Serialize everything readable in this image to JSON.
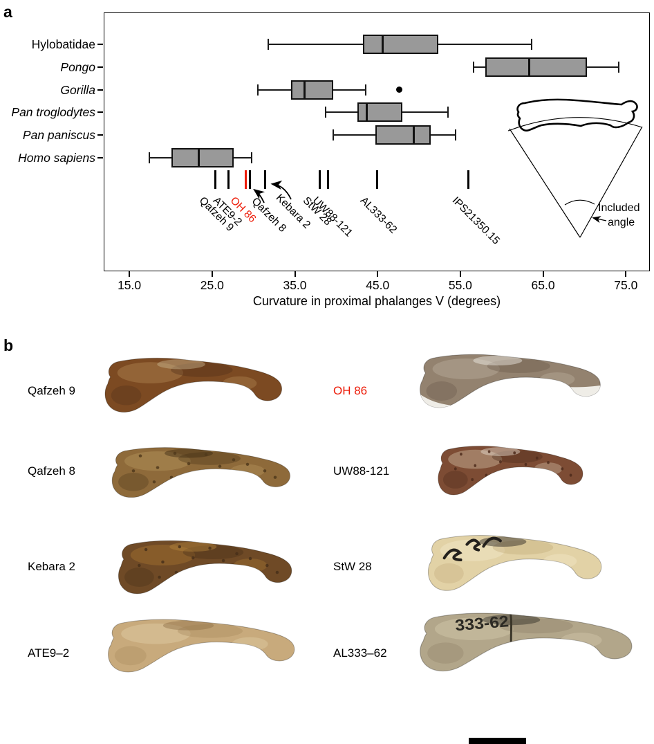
{
  "panel_a": {
    "label": "a",
    "inset": {
      "caption_line1": "Included",
      "caption_line2": "angle"
    }
  },
  "chart_data": {
    "type": "boxplot-horizontal",
    "title": "",
    "xlabel": "Curvature in proximal phalanges V (degrees)",
    "xlim": [
      11.9,
      77.9
    ],
    "x_ticks": [
      15,
      25,
      35,
      45,
      55,
      65,
      75
    ],
    "x_tick_labels": [
      "15.0",
      "25.0",
      "35.0",
      "45.0",
      "55.0",
      "65.0",
      "75.0"
    ],
    "grid": false,
    "box_fill": "#999999",
    "series": [
      {
        "name": "Hylobatidae",
        "italic": false,
        "min": 31.8,
        "q1": 43.2,
        "median": 45.6,
        "q3": 52.3,
        "max": 63.6,
        "outliers": []
      },
      {
        "name": "Pongo",
        "italic": true,
        "min": 56.6,
        "q1": 58.0,
        "median": 63.3,
        "q3": 70.3,
        "max": 74.1,
        "outliers": []
      },
      {
        "name": "Gorilla",
        "italic": true,
        "min": 30.5,
        "q1": 34.5,
        "median": 36.2,
        "q3": 39.6,
        "max": 43.6,
        "outliers": [
          47.6
        ]
      },
      {
        "name": "Pan troglodytes",
        "italic": true,
        "min": 38.7,
        "q1": 42.6,
        "median": 43.7,
        "q3": 48.0,
        "max": 53.5,
        "outliers": []
      },
      {
        "name": "Pan paniscus",
        "italic": true,
        "min": 39.6,
        "q1": 44.7,
        "median": 49.4,
        "q3": 51.4,
        "max": 54.4,
        "outliers": []
      },
      {
        "name": "Homo sapiens",
        "italic": true,
        "min": 17.4,
        "q1": 20.1,
        "median": 23.4,
        "q3": 27.6,
        "max": 29.8,
        "outliers": []
      }
    ],
    "fossil_markers": [
      {
        "label": "Qafzeh 9",
        "value": 25.4,
        "color": "#000000"
      },
      {
        "label": "ATE9-2",
        "value": 27.0,
        "color": "#000000"
      },
      {
        "label": "OH 86",
        "value": 29.1,
        "color": "#ed1c09"
      },
      {
        "label": "Qafzeh 8",
        "value": 29.6,
        "color": "#000000",
        "arrow": true
      },
      {
        "label": "Kebara 2",
        "value": 31.4,
        "color": "#000000",
        "arrow": true
      },
      {
        "label": "StW 28",
        "value": 38.0,
        "color": "#000000"
      },
      {
        "label": "UW88-121",
        "value": 39.0,
        "color": "#000000"
      },
      {
        "label": "AL333-62",
        "value": 44.9,
        "color": "#000000"
      },
      {
        "label": "IPS21350.15",
        "value": 56.0,
        "color": "#000000"
      }
    ]
  },
  "panel_b": {
    "label": "b",
    "scale_bar_present": true,
    "highlight_color": "#ed1c09",
    "specimens": [
      {
        "name": "Qafzeh 9",
        "name_color": "#000000",
        "bone_colors": {
          "base": "#7c4a22",
          "dark": "#53301a",
          "light": "#a57a48",
          "accent": "#c9b690"
        }
      },
      {
        "name": "OH 86",
        "name_color": "#ed1c09",
        "white_underside": true,
        "bone_colors": {
          "base": "#93826f",
          "dark": "#6b5a4a",
          "light": "#b3a593",
          "accent": "#f1efe9"
        }
      },
      {
        "name": "Qafzeh 8",
        "name_color": "#000000",
        "speckled": true,
        "bone_colors": {
          "base": "#8e6a3a",
          "dark": "#513a1c",
          "light": "#ad8c55",
          "accent": "#3c2b12"
        }
      },
      {
        "name": "UW88-121",
        "name_color": "#000000",
        "speckled": true,
        "bone_colors": {
          "base": "#7d4c34",
          "dark": "#4e2c1c",
          "light": "#c0a58d",
          "accent": "#e9e0d2"
        }
      },
      {
        "name": "Kebara 2",
        "name_color": "#000000",
        "speckled": true,
        "bone_colors": {
          "base": "#6f4a26",
          "dark": "#49301a",
          "light": "#9a6b2e",
          "accent": "#b4863c"
        }
      },
      {
        "name": "StW 28",
        "name_color": "#000000",
        "ink_scribble": true,
        "bone_colors": {
          "base": "#e2d2a6",
          "dark": "#c4ad7a",
          "light": "#efe4c2",
          "accent": "#23201c"
        }
      },
      {
        "name": "ATE9–2",
        "name_color": "#000000",
        "bone_colors": {
          "base": "#c8aa7c",
          "dark": "#a98b5e",
          "light": "#dcc79e",
          "accent": "#8d6f46"
        }
      },
      {
        "name": "AL333–62",
        "name_color": "#000000",
        "ink_text": "333-62",
        "crack": true,
        "bone_colors": {
          "base": "#b2a68a",
          "dark": "#8e8268",
          "light": "#cdc2a6",
          "accent": "#2c2a24"
        }
      }
    ]
  }
}
